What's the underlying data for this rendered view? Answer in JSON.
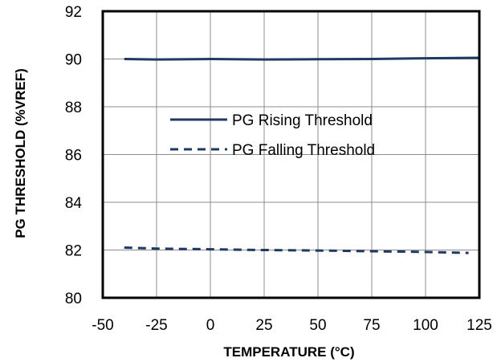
{
  "chart_data": {
    "type": "line",
    "title": "",
    "xlabel": "TEMPERATURE   (°C)",
    "ylabel": "PG THRESHOLD  (%VREF)",
    "xlim": [
      -50,
      125
    ],
    "ylim": [
      80,
      92
    ],
    "xticks": [
      "-50",
      "-25",
      "0",
      "25",
      "50",
      "75",
      "100",
      "125"
    ],
    "yticks": [
      "80",
      "82",
      "84",
      "86",
      "88",
      "90",
      "92"
    ],
    "grid": true,
    "legend_position": "center",
    "series": [
      {
        "name": "PG Rising Threshold",
        "style": "solid",
        "color": "#1f3864",
        "x": [
          -40,
          -25,
          0,
          25,
          50,
          75,
          100,
          125
        ],
        "y": [
          90.0,
          89.98,
          90.0,
          89.98,
          89.99,
          90.0,
          90.03,
          90.05
        ]
      },
      {
        "name": "PG Falling Threshold",
        "style": "dashed",
        "color": "#1f3864",
        "x": [
          -40,
          -25,
          0,
          25,
          50,
          75,
          100,
          120
        ],
        "y": [
          82.1,
          82.06,
          82.03,
          82.0,
          81.98,
          81.95,
          81.92,
          81.88
        ]
      }
    ]
  }
}
